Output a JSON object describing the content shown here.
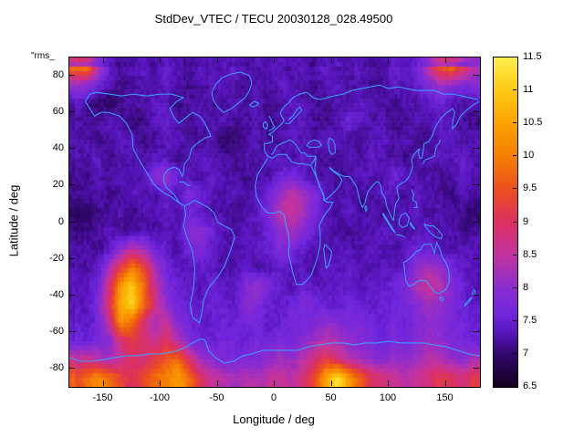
{
  "key_label": "\"rms_",
  "coast_color": "#38a5ff",
  "palette": [
    {
      "v": 6.5,
      "c": "#14001c"
    },
    {
      "v": 7.0,
      "c": "#31076e"
    },
    {
      "v": 7.3,
      "c": "#5513b8"
    },
    {
      "v": 7.6,
      "c": "#7026dd"
    },
    {
      "v": 8.0,
      "c": "#8c2ccf"
    },
    {
      "v": 8.5,
      "c": "#c233a0"
    },
    {
      "v": 9.0,
      "c": "#dc3060"
    },
    {
      "v": 9.5,
      "c": "#ec4f1d"
    },
    {
      "v": 10.0,
      "c": "#f57f02"
    },
    {
      "v": 10.5,
      "c": "#fba201"
    },
    {
      "v": 11.0,
      "c": "#fdc913"
    },
    {
      "v": 11.5,
      "c": "#fff04d"
    }
  ],
  "chart_data": {
    "type": "heatmap",
    "title": "StdDev_VTEC / TECU 20030128_028.49500",
    "xlabel": "Longitude / deg",
    "ylabel": "Latitude / deg",
    "xlim": [
      -180,
      180
    ],
    "ylim": [
      -90,
      90
    ],
    "zlim": [
      6.5,
      11.5
    ],
    "xticks": [
      -150,
      -100,
      -50,
      0,
      50,
      100,
      150
    ],
    "yticks": [
      -80,
      -60,
      -40,
      -20,
      0,
      20,
      40,
      60,
      80
    ],
    "zticks": [
      6.5,
      7,
      7.5,
      8,
      8.5,
      9,
      9.5,
      10,
      10.5,
      11,
      11.5
    ],
    "legend_position": "right-colorbar",
    "grid": false,
    "lon_centers": [
      -175,
      -165,
      -155,
      -145,
      -135,
      -125,
      -115,
      -105,
      -95,
      -85,
      -75,
      -65,
      -55,
      -45,
      -35,
      -25,
      -15,
      -5,
      5,
      15,
      25,
      35,
      45,
      55,
      65,
      75,
      85,
      95,
      105,
      115,
      125,
      135,
      145,
      155,
      165,
      175
    ],
    "lat_centers": [
      85,
      75,
      65,
      55,
      45,
      35,
      25,
      15,
      5,
      -5,
      -15,
      -25,
      -35,
      -45,
      -55,
      -65,
      -75,
      -85
    ],
    "values": [
      [
        9.8,
        10.2,
        8.5,
        7.5,
        7.2,
        7.3,
        7.4,
        7.2,
        7.5,
        7.3,
        7.2,
        7.4,
        7.3,
        7.2,
        7.5,
        7.3,
        7.2,
        7.4,
        7.3,
        7.2,
        7.4,
        7.3,
        7.5,
        7.2,
        7.3,
        7.4,
        7.2,
        7.3,
        7.5,
        7.4,
        7.6,
        8.6,
        9.6,
        9.9,
        9.2,
        8.4
      ],
      [
        8.2,
        8.0,
        7.6,
        7.3,
        7.1,
        7.2,
        7.3,
        7.2,
        7.4,
        7.3,
        7.1,
        7.2,
        7.3,
        7.4,
        7.2,
        7.1,
        7.3,
        7.2,
        7.4,
        7.3,
        7.2,
        7.1,
        7.3,
        7.4,
        7.2,
        7.3,
        7.1,
        7.2,
        7.4,
        7.3,
        7.5,
        7.8,
        8.2,
        8.0,
        7.7,
        7.9
      ],
      [
        7.4,
        7.2,
        7.0,
        6.9,
        7.1,
        7.3,
        7.2,
        7.4,
        7.3,
        7.1,
        7.2,
        7.3,
        7.2,
        7.1,
        7.4,
        7.2,
        7.3,
        7.1,
        7.2,
        7.4,
        7.3,
        7.2,
        7.1,
        7.3,
        7.2,
        7.4,
        7.3,
        7.2,
        7.1,
        7.3,
        7.2,
        7.4,
        7.5,
        7.3,
        7.2,
        7.3
      ],
      [
        7.3,
        7.1,
        7.2,
        7.4,
        7.2,
        7.0,
        7.1,
        7.3,
        7.5,
        7.2,
        7.1,
        7.3,
        7.2,
        7.4,
        7.1,
        7.2,
        7.3,
        7.1,
        7.2,
        7.3,
        7.4,
        7.2,
        7.1,
        7.3,
        7.6,
        7.4,
        7.2,
        7.3,
        7.1,
        7.2,
        7.3,
        7.2,
        7.4,
        7.3,
        7.2,
        7.1
      ],
      [
        7.2,
        7.3,
        7.1,
        7.2,
        7.4,
        7.3,
        7.1,
        7.2,
        7.3,
        7.4,
        7.2,
        7.1,
        7.3,
        6.9,
        7.0,
        7.2,
        7.3,
        7.1,
        7.2,
        7.4,
        7.3,
        7.2,
        7.5,
        7.3,
        7.2,
        7.1,
        7.3,
        7.4,
        7.2,
        7.3,
        7.1,
        7.2,
        7.3,
        7.4,
        7.2,
        7.3
      ],
      [
        7.3,
        7.2,
        7.4,
        7.1,
        7.2,
        7.3,
        7.2,
        7.4,
        7.3,
        7.1,
        7.2,
        7.5,
        7.3,
        7.2,
        7.1,
        7.3,
        7.2,
        7.4,
        7.3,
        7.2,
        7.4,
        7.3,
        7.1,
        7.2,
        7.3,
        7.2,
        7.4,
        7.3,
        7.2,
        7.1,
        7.3,
        7.2,
        7.4,
        7.3,
        7.5,
        7.2
      ],
      [
        7.2,
        7.1,
        7.3,
        7.2,
        7.4,
        7.2,
        7.3,
        7.9,
        8.1,
        7.6,
        7.3,
        7.2,
        7.4,
        7.3,
        7.2,
        7.1,
        7.3,
        7.2,
        7.5,
        7.7,
        7.4,
        7.2,
        7.3,
        7.1,
        7.2,
        7.4,
        7.3,
        7.2,
        7.6,
        7.4,
        7.2,
        7.3,
        7.1,
        7.2,
        7.4,
        7.3
      ],
      [
        7.1,
        7.2,
        7.3,
        7.1,
        7.2,
        7.4,
        7.3,
        7.2,
        7.5,
        7.3,
        7.8,
        7.6,
        7.3,
        7.2,
        7.4,
        7.2,
        7.3,
        7.6,
        8.2,
        8.5,
        8.3,
        7.8,
        7.4,
        7.2,
        7.3,
        7.1,
        7.2,
        7.4,
        7.3,
        7.2,
        7.4,
        7.3,
        7.2,
        7.1,
        7.3,
        7.2
      ],
      [
        6.9,
        7.0,
        7.1,
        7.2,
        7.3,
        7.1,
        7.2,
        7.3,
        7.4,
        7.2,
        7.6,
        7.4,
        7.2,
        7.3,
        7.1,
        7.2,
        7.4,
        7.8,
        8.4,
        8.6,
        8.2,
        7.7,
        7.3,
        7.2,
        7.4,
        7.2,
        7.3,
        7.1,
        7.2,
        7.3,
        7.4,
        7.2,
        7.3,
        7.2,
        7.1,
        7.0
      ],
      [
        7.0,
        7.1,
        7.2,
        7.3,
        7.1,
        7.2,
        7.3,
        7.2,
        7.4,
        7.3,
        7.9,
        8.0,
        7.6,
        7.3,
        7.2,
        7.4,
        7.3,
        7.6,
        8.0,
        8.2,
        7.9,
        7.5,
        7.3,
        7.2,
        7.1,
        7.3,
        7.2,
        7.4,
        7.3,
        7.2,
        7.3,
        7.4,
        7.2,
        7.3,
        7.1,
        7.2
      ],
      [
        7.2,
        7.3,
        7.1,
        7.4,
        8.0,
        8.5,
        8.2,
        7.7,
        7.4,
        7.2,
        7.6,
        7.8,
        7.4,
        7.3,
        7.2,
        7.3,
        7.4,
        7.5,
        7.8,
        7.7,
        7.4,
        7.3,
        7.2,
        7.4,
        7.3,
        7.2,
        7.4,
        7.3,
        7.2,
        7.4,
        7.6,
        7.5,
        7.3,
        7.2,
        7.4,
        7.3
      ],
      [
        7.3,
        7.2,
        7.4,
        8.3,
        9.2,
        10.0,
        9.4,
        8.3,
        7.6,
        7.4,
        7.3,
        7.5,
        7.4,
        7.2,
        7.3,
        7.4,
        7.2,
        7.3,
        7.5,
        7.4,
        7.3,
        7.2,
        7.4,
        7.3,
        7.5,
        7.3,
        7.2,
        7.4,
        7.3,
        7.5,
        8.0,
        8.3,
        8.1,
        7.7,
        7.4,
        7.3
      ],
      [
        7.2,
        7.4,
        7.6,
        8.8,
        10.4,
        11.0,
        9.8,
        8.6,
        7.8,
        7.5,
        7.4,
        7.3,
        7.5,
        7.4,
        7.3,
        7.9,
        8.1,
        7.8,
        7.4,
        7.3,
        7.5,
        7.4,
        7.3,
        7.5,
        7.4,
        7.3,
        7.5,
        7.4,
        7.6,
        7.8,
        8.3,
        8.6,
        8.4,
        7.9,
        7.5,
        7.3
      ],
      [
        7.4,
        7.3,
        7.8,
        9.0,
        10.6,
        11.2,
        9.8,
        8.8,
        8.0,
        7.6,
        7.5,
        7.4,
        7.6,
        7.5,
        7.4,
        8.0,
        7.8,
        7.5,
        7.4,
        7.6,
        7.8,
        7.7,
        7.5,
        7.4,
        7.6,
        7.5,
        7.4,
        7.6,
        7.5,
        7.7,
        7.9,
        8.2,
        8.0,
        7.8,
        7.5,
        7.4
      ],
      [
        7.5,
        7.4,
        7.6,
        8.6,
        10.2,
        9.8,
        8.8,
        8.2,
        8.6,
        7.9,
        7.6,
        7.5,
        7.4,
        7.6,
        7.5,
        7.7,
        7.6,
        7.4,
        7.5,
        7.7,
        7.6,
        7.8,
        8.0,
        7.9,
        7.7,
        7.8,
        7.6,
        7.5,
        7.7,
        7.6,
        7.8,
        8.0,
        7.9,
        7.7,
        7.6,
        7.5
      ],
      [
        7.6,
        7.5,
        7.7,
        7.9,
        8.8,
        9.2,
        9.0,
        8.6,
        9.0,
        8.4,
        7.8,
        7.6,
        7.5,
        7.7,
        7.6,
        7.5,
        7.7,
        7.6,
        7.8,
        7.7,
        7.9,
        8.2,
        8.4,
        8.3,
        8.0,
        7.9,
        7.7,
        7.6,
        7.8,
        7.7,
        7.9,
        8.1,
        8.0,
        7.8,
        7.7,
        7.6
      ],
      [
        8.4,
        8.8,
        8.5,
        8.2,
        8.6,
        9.0,
        8.8,
        9.2,
        9.6,
        9.8,
        8.9,
        8.2,
        7.9,
        7.8,
        7.7,
        7.9,
        7.8,
        8.0,
        8.2,
        8.1,
        8.4,
        8.8,
        9.2,
        8.8,
        8.4,
        8.2,
        8.0,
        7.9,
        8.1,
        8.0,
        8.2,
        8.4,
        8.3,
        8.1,
        7.9,
        8.2
      ],
      [
        9.4,
        9.8,
        10.2,
        9.9,
        9.3,
        9.0,
        9.4,
        9.8,
        10.0,
        10.5,
        9.8,
        9.0,
        8.6,
        8.4,
        8.2,
        8.4,
        8.3,
        8.5,
        8.6,
        8.4,
        8.8,
        9.4,
        10.5,
        11.3,
        10.4,
        9.6,
        9.0,
        8.8,
        8.6,
        8.4,
        8.6,
        8.8,
        9.2,
        9.0,
        8.8,
        9.2
      ]
    ]
  }
}
